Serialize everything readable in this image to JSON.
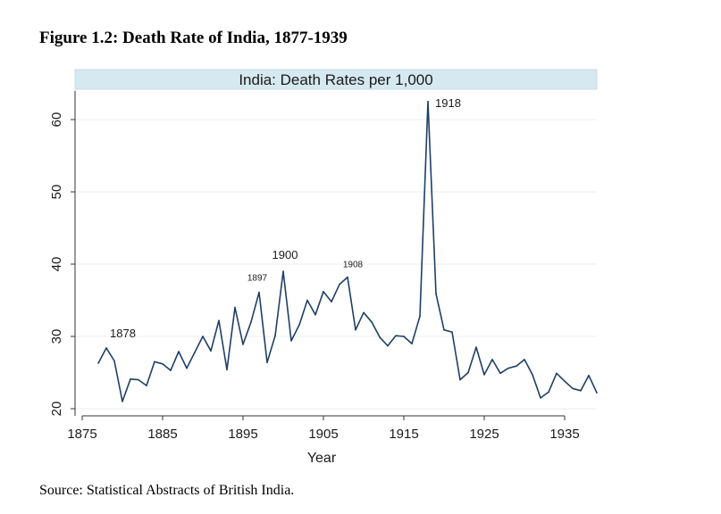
{
  "figure_title": "Figure 1.2: Death Rate of India, 1877-1939",
  "source_note": "Source: Statistical Abstracts of British India.",
  "chart_data": {
    "type": "line",
    "title": "India: Death Rates per 1,000",
    "xlabel": "Year",
    "ylabel": "",
    "xlim": [
      1876,
      1940
    ],
    "ylim": [
      20,
      63
    ],
    "xticks": [
      1875,
      1885,
      1895,
      1905,
      1915,
      1925,
      1935
    ],
    "yticks": [
      20,
      30,
      40,
      50,
      60
    ],
    "grid": true,
    "line_color": "#1f3f66",
    "title_band_color": "#d6e8f0",
    "x": [
      1877,
      1878,
      1879,
      1880,
      1881,
      1882,
      1883,
      1884,
      1885,
      1886,
      1887,
      1888,
      1889,
      1890,
      1891,
      1892,
      1893,
      1894,
      1895,
      1896,
      1897,
      1898,
      1899,
      1900,
      1901,
      1902,
      1903,
      1904,
      1905,
      1906,
      1907,
      1908,
      1909,
      1910,
      1911,
      1912,
      1913,
      1914,
      1915,
      1916,
      1917,
      1918,
      1919,
      1920,
      1921,
      1922,
      1923,
      1924,
      1925,
      1926,
      1927,
      1928,
      1929,
      1930,
      1931,
      1932,
      1933,
      1934,
      1935,
      1936,
      1937,
      1938,
      1939
    ],
    "values": [
      26.3,
      28.4,
      26.6,
      21.0,
      24.1,
      24.0,
      23.2,
      26.5,
      26.2,
      25.3,
      27.9,
      25.6,
      27.8,
      30.0,
      28.0,
      32.2,
      25.4,
      34.0,
      28.9,
      32.0,
      36.1,
      26.4,
      30.1,
      39.0,
      29.4,
      31.6,
      35.0,
      33.0,
      36.2,
      34.8,
      37.2,
      38.2,
      30.9,
      33.3,
      32.0,
      29.9,
      28.7,
      30.1,
      30.0,
      29.0,
      32.8,
      62.5,
      35.9,
      30.9,
      30.6,
      24.0,
      25.0,
      28.5,
      24.7,
      26.8,
      24.9,
      25.6,
      25.9,
      26.8,
      24.7,
      21.5,
      22.3,
      24.9,
      23.8,
      22.8,
      22.5,
      24.6,
      22.2
    ],
    "annotations": [
      {
        "label": "1878",
        "x": 1878,
        "y": 28.4
      },
      {
        "label": "1897",
        "x": 1897,
        "y": 36.1
      },
      {
        "label": "1900",
        "x": 1900,
        "y": 39.0
      },
      {
        "label": "1908",
        "x": 1908,
        "y": 38.2
      },
      {
        "label": "1918",
        "x": 1918,
        "y": 62.5
      }
    ]
  }
}
